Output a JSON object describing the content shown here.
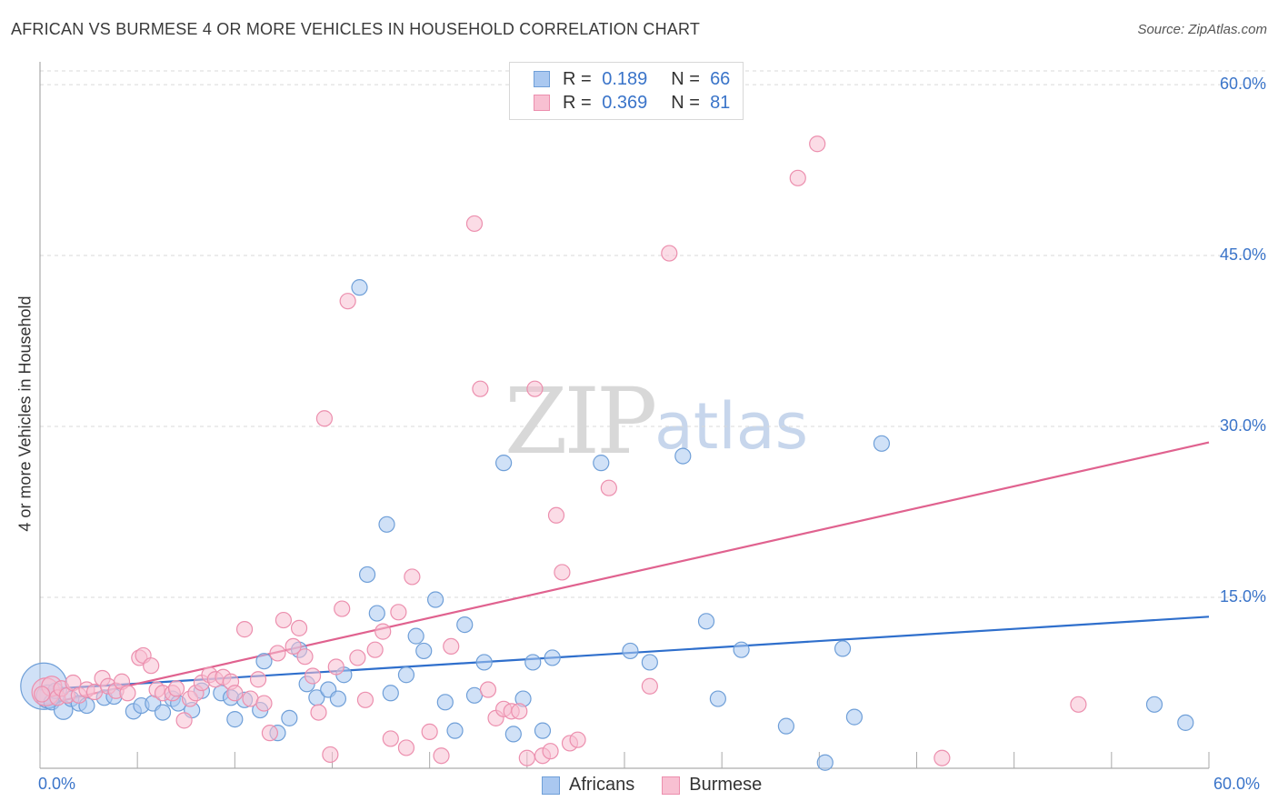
{
  "header": {
    "title": "AFRICAN VS BURMESE 4 OR MORE VEHICLES IN HOUSEHOLD CORRELATION CHART",
    "source": "Source: ZipAtlas.com"
  },
  "watermark": {
    "zip": "ZIP",
    "atlas": "atlas"
  },
  "legend": {
    "rows": [
      {
        "r_label": "R =",
        "r_value": "0.189",
        "n_label": "N =",
        "n_value": "66"
      },
      {
        "r_label": "R =",
        "r_value": "0.369",
        "n_label": "N =",
        "n_value": "81"
      }
    ]
  },
  "colors": {
    "africans_fill": "#aac8f0",
    "africans_stroke": "#6f9fd8",
    "africans_line": "#2f6fcc",
    "burmese_fill": "#f8c0d2",
    "burmese_stroke": "#ec8fae",
    "burmese_line": "#e0628f",
    "grid": "#d9d9d9",
    "tick_text": "#3a74c9"
  },
  "chart_data": {
    "type": "scatter",
    "title": "AFRICAN VS BURMESE 4 OR MORE VEHICLES IN HOUSEHOLD CORRELATION CHART",
    "xlabel": "",
    "ylabel": "4 or more Vehicles in Household",
    "xlim": [
      0,
      60
    ],
    "ylim": [
      0,
      62
    ],
    "x_tick_labels": [
      "0.0%",
      "60.0%"
    ],
    "y_tick_values": [
      15,
      30,
      45,
      60
    ],
    "y_tick_labels": [
      "15.0%",
      "30.0%",
      "45.0%",
      "60.0%"
    ],
    "grid": true,
    "series": [
      {
        "name": "Africans",
        "r": 0.189,
        "n": 66,
        "trend": {
          "x": [
            0,
            60
          ],
          "y": [
            6.9,
            13.3
          ]
        },
        "points": [
          [
            0.2,
            7.2,
            3
          ],
          [
            0.4,
            6.3,
            1.5
          ],
          [
            0.6,
            5.8,
            1
          ],
          [
            0.8,
            6.8,
            1
          ],
          [
            1.2,
            5.1,
            1.2
          ],
          [
            1.6,
            6.1,
            1
          ],
          [
            2.0,
            5.7,
            1
          ],
          [
            2.4,
            5.5,
            1
          ],
          [
            3.3,
            6.2,
            1
          ],
          [
            3.8,
            6.3,
            1
          ],
          [
            4.8,
            5.0,
            1
          ],
          [
            5.2,
            5.5,
            1
          ],
          [
            5.8,
            5.7,
            1
          ],
          [
            6.3,
            4.9,
            1
          ],
          [
            6.8,
            6.1,
            1
          ],
          [
            7.1,
            5.7,
            1
          ],
          [
            7.8,
            5.1,
            1
          ],
          [
            8.3,
            6.8,
            1
          ],
          [
            9.3,
            6.6,
            1
          ],
          [
            9.8,
            6.2,
            1
          ],
          [
            10.0,
            4.3,
            1
          ],
          [
            10.5,
            6.0,
            1
          ],
          [
            11.3,
            5.1,
            1
          ],
          [
            11.5,
            9.4,
            1
          ],
          [
            12.2,
            3.1,
            1
          ],
          [
            12.8,
            4.4,
            1
          ],
          [
            13.3,
            10.4,
            1
          ],
          [
            13.7,
            7.4,
            1
          ],
          [
            14.2,
            6.2,
            1
          ],
          [
            14.8,
            6.9,
            1
          ],
          [
            15.3,
            6.1,
            1
          ],
          [
            15.6,
            8.2,
            1
          ],
          [
            16.4,
            42.2,
            1
          ],
          [
            16.8,
            17.0,
            1
          ],
          [
            17.3,
            13.6,
            1
          ],
          [
            17.8,
            21.4,
            1
          ],
          [
            18.0,
            6.6,
            1
          ],
          [
            18.8,
            8.2,
            1
          ],
          [
            19.3,
            11.6,
            1
          ],
          [
            19.7,
            10.3,
            1
          ],
          [
            20.3,
            14.8,
            1
          ],
          [
            20.8,
            5.8,
            1
          ],
          [
            21.3,
            3.3,
            1
          ],
          [
            21.8,
            12.6,
            1
          ],
          [
            22.3,
            6.4,
            1
          ],
          [
            22.8,
            9.3,
            1
          ],
          [
            23.8,
            26.8,
            1
          ],
          [
            24.3,
            3.0,
            1
          ],
          [
            24.8,
            6.1,
            1
          ],
          [
            25.3,
            9.3,
            1
          ],
          [
            25.8,
            3.3,
            1
          ],
          [
            26.3,
            9.7,
            1
          ],
          [
            28.8,
            26.8,
            1
          ],
          [
            30.3,
            10.3,
            1
          ],
          [
            31.3,
            9.3,
            1
          ],
          [
            33.0,
            27.4,
            1
          ],
          [
            34.2,
            12.9,
            1
          ],
          [
            34.8,
            6.1,
            1
          ],
          [
            36.0,
            10.4,
            1
          ],
          [
            38.3,
            3.7,
            1
          ],
          [
            40.3,
            0.5,
            1
          ],
          [
            41.2,
            10.5,
            1
          ],
          [
            41.8,
            4.5,
            1
          ],
          [
            43.2,
            28.5,
            1
          ],
          [
            57.2,
            5.6,
            1
          ],
          [
            58.8,
            4.0,
            1
          ]
        ]
      },
      {
        "name": "Burmese",
        "r": 0.369,
        "n": 81,
        "trend": {
          "x": [
            0,
            60
          ],
          "y": [
            5.5,
            28.6
          ]
        },
        "points": [
          [
            0.3,
            6.7,
            1.8
          ],
          [
            0.6,
            7.2,
            1.3
          ],
          [
            0.9,
            6.2,
            1
          ],
          [
            1.1,
            7.0,
            1
          ],
          [
            1.4,
            6.4,
            1
          ],
          [
            1.7,
            7.5,
            1
          ],
          [
            2.0,
            6.4,
            1
          ],
          [
            2.4,
            6.9,
            1
          ],
          [
            2.8,
            6.7,
            1
          ],
          [
            3.2,
            7.9,
            1
          ],
          [
            3.5,
            7.2,
            1
          ],
          [
            3.9,
            6.8,
            1
          ],
          [
            4.2,
            7.6,
            1
          ],
          [
            4.5,
            6.6,
            1
          ],
          [
            5.1,
            9.7,
            1
          ],
          [
            5.3,
            9.9,
            1
          ],
          [
            5.7,
            9.0,
            1
          ],
          [
            6.0,
            6.9,
            1
          ],
          [
            6.3,
            6.6,
            1
          ],
          [
            6.8,
            6.6,
            1
          ],
          [
            7.0,
            7.0,
            1
          ],
          [
            7.4,
            4.2,
            1
          ],
          [
            7.7,
            6.1,
            1
          ],
          [
            8.0,
            6.6,
            1
          ],
          [
            8.3,
            7.5,
            1
          ],
          [
            8.7,
            8.2,
            1
          ],
          [
            9.0,
            7.8,
            1
          ],
          [
            9.4,
            8.0,
            1
          ],
          [
            9.8,
            7.6,
            1
          ],
          [
            10.0,
            6.6,
            1
          ],
          [
            10.5,
            12.2,
            1
          ],
          [
            10.8,
            6.1,
            1
          ],
          [
            11.2,
            7.8,
            1
          ],
          [
            11.5,
            5.7,
            1
          ],
          [
            11.8,
            3.1,
            1
          ],
          [
            12.2,
            10.1,
            1
          ],
          [
            12.5,
            13.0,
            1
          ],
          [
            13.0,
            10.7,
            1
          ],
          [
            13.3,
            12.3,
            1
          ],
          [
            13.6,
            9.8,
            1
          ],
          [
            14.0,
            8.1,
            1
          ],
          [
            14.3,
            4.9,
            1
          ],
          [
            14.6,
            30.7,
            1
          ],
          [
            14.9,
            1.2,
            1
          ],
          [
            15.2,
            8.9,
            1
          ],
          [
            15.5,
            14.0,
            1
          ],
          [
            15.8,
            41.0,
            1
          ],
          [
            16.3,
            9.7,
            1
          ],
          [
            16.7,
            6.0,
            1
          ],
          [
            17.2,
            10.4,
            1
          ],
          [
            17.6,
            12.0,
            1
          ],
          [
            18.0,
            2.6,
            1
          ],
          [
            18.4,
            13.7,
            1
          ],
          [
            18.8,
            1.8,
            1
          ],
          [
            19.1,
            16.8,
            1
          ],
          [
            20.0,
            3.2,
            1
          ],
          [
            20.6,
            1.1,
            1
          ],
          [
            21.1,
            10.7,
            1
          ],
          [
            22.3,
            47.8,
            1
          ],
          [
            22.6,
            33.3,
            1
          ],
          [
            23.0,
            6.9,
            1
          ],
          [
            23.4,
            4.4,
            1
          ],
          [
            23.8,
            5.2,
            1
          ],
          [
            24.2,
            5.0,
            1
          ],
          [
            24.6,
            5.0,
            1
          ],
          [
            25.0,
            0.9,
            1
          ],
          [
            25.4,
            33.3,
            1
          ],
          [
            25.8,
            1.1,
            1
          ],
          [
            26.2,
            1.5,
            1
          ],
          [
            26.5,
            22.2,
            1
          ],
          [
            26.8,
            17.2,
            1
          ],
          [
            27.2,
            2.2,
            1
          ],
          [
            27.6,
            2.5,
            1
          ],
          [
            29.2,
            24.6,
            1
          ],
          [
            31.3,
            7.2,
            1
          ],
          [
            32.3,
            45.2,
            1
          ],
          [
            38.9,
            51.8,
            1
          ],
          [
            39.9,
            54.8,
            1
          ],
          [
            46.3,
            0.9,
            1
          ],
          [
            53.3,
            5.6,
            1
          ],
          [
            0.1,
            6.5,
            1
          ]
        ]
      }
    ]
  },
  "bottom_legend": {
    "items": [
      "Africans",
      "Burmese"
    ]
  }
}
